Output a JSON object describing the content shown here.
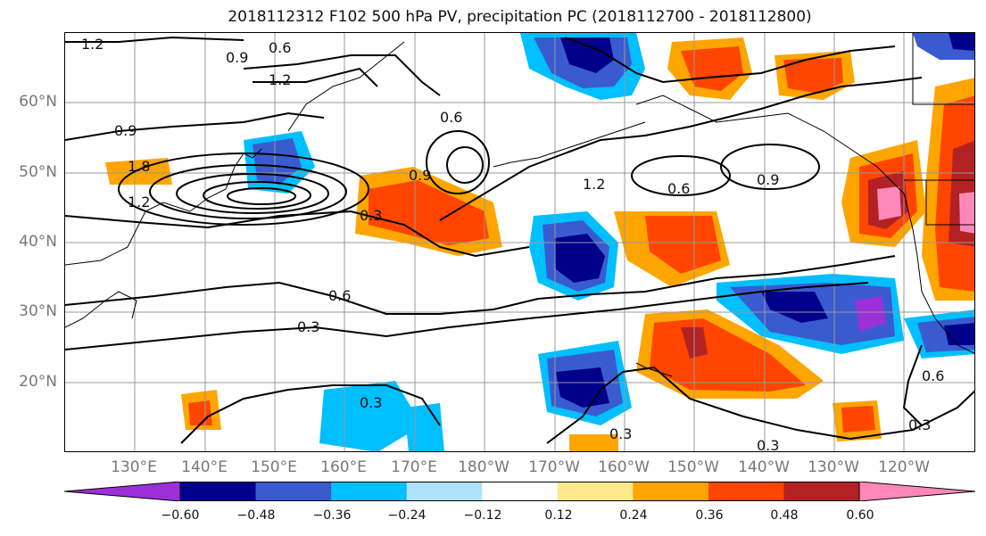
{
  "title": "2018112312 F102 500 hPa PV, precipitation PC (2018112700 - 2018112800)",
  "lat_labels": [
    "60°N",
    "50°N",
    "40°N",
    "30°N",
    "20°N"
  ],
  "lon_labels": [
    "130°E",
    "140°E",
    "150°E",
    "160°E",
    "170°E",
    "180°W",
    "170°W",
    "160°W",
    "150°W",
    "140°W",
    "130°W",
    "120°W"
  ],
  "colorbar": {
    "colors": [
      "#9b30d8",
      "#00008b",
      "#3a5bcf",
      "#00bfff",
      "#b0e0ff",
      "#ffffff",
      "#ffe98a",
      "#ffa500",
      "#ff4500",
      "#b22222",
      "#ff88bb"
    ],
    "ticks": [
      "−0.60",
      "−0.48",
      "−0.36",
      "−0.24",
      "−0.12",
      "0.12",
      "0.24",
      "0.36",
      "0.48",
      "0.60"
    ]
  },
  "contour_labels": [
    "1.2",
    "0.9",
    "0.6",
    "1.2",
    "0.3",
    "1.8",
    "1.2",
    "0.9",
    "0.6",
    "0.3",
    "0.6",
    "1.2",
    "0.9",
    "0.6",
    "0.9",
    "0.3",
    "0.3",
    "0.3",
    "0.6",
    "0.3"
  ],
  "palette": {
    "neg_strong": "#00008b",
    "neg_mid": "#3a5bcf",
    "neg_light": "#00bfff",
    "neg_pale": "#b0e0ff",
    "pos_pale": "#ffe98a",
    "pos_light": "#ffa500",
    "pos_mid": "#ff4500",
    "pos_strong": "#b22222",
    "pos_max": "#ff88bb",
    "neg_max": "#9b30d8"
  }
}
